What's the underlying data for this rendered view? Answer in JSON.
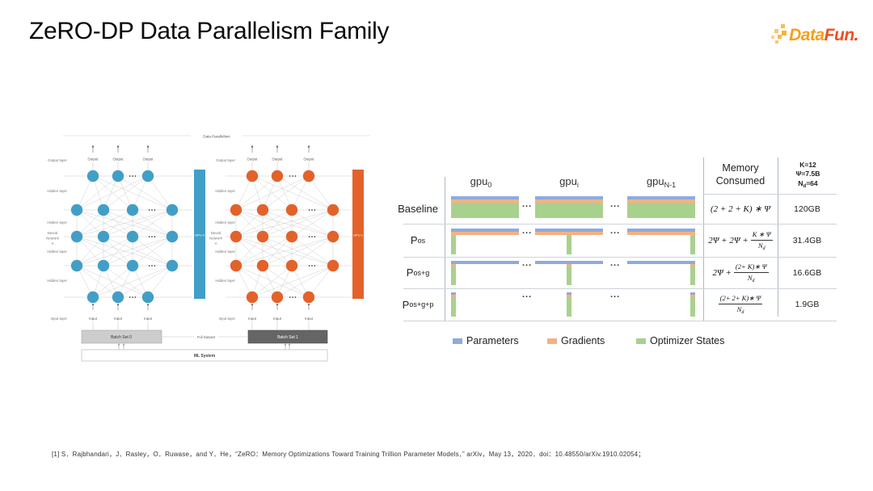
{
  "slide": {
    "title": "ZeRO-DP Data Parallelism Family"
  },
  "logo": {
    "part1": "Data",
    "part2": "Fun",
    "part3": "."
  },
  "diagram": {
    "title": "Data Parallelism",
    "output_layer_label": "Output layer",
    "hidden_layer_label": "Hidden layer",
    "input_layer_label": "Input layer",
    "output_node_label": "Output",
    "input_node_label": "Input",
    "network_label_lines": [
      "Neural",
      "Network",
      "A"
    ],
    "gpu0_label": "GPU 0",
    "gpu1_label": "GPU 1",
    "batch0_label": "Batch Set 0",
    "batch1_label": "Batch Set 1",
    "full_dataset_label": "Full Dataset",
    "ml_system_label": "ML System",
    "colors": {
      "network_a": "#419FC7",
      "network_b": "#E3622A"
    }
  },
  "figure": {
    "gpu_headers": [
      {
        "base": "gpu",
        "sub": "0"
      },
      {
        "base": "gpu",
        "sub": "i"
      },
      {
        "base": "gpu",
        "sub": "N-1"
      }
    ],
    "memory_header": "Memory Consumed",
    "constants": {
      "k": "K=12",
      "psi": "Ψ=7.5B",
      "nd_base": "N",
      "nd_sub": "d",
      "nd_eq": "=64"
    },
    "ellipsis": "...",
    "rows": [
      {
        "label": "Baseline",
        "label_sub": "",
        "formula_pre": "(2 + 2 + K) ∗ Ψ",
        "frac_num": "",
        "frac_den_base": "",
        "frac_den_sub": "",
        "memory": "120GB"
      },
      {
        "label": "P",
        "label_sub": "os",
        "formula_pre": "2Ψ + 2Ψ +",
        "frac_num": "K ∗ Ψ",
        "frac_den_base": "N",
        "frac_den_sub": "d",
        "memory": "31.4GB"
      },
      {
        "label": "P",
        "label_sub": "os+g",
        "formula_pre": "2Ψ +",
        "frac_num": "(2+ K)∗ Ψ",
        "frac_den_base": "N",
        "frac_den_sub": "d",
        "memory": "16.6GB"
      },
      {
        "label": "P",
        "label_sub": "os+g+p",
        "formula_pre": "",
        "frac_num": "(2+ 2+ K)∗ Ψ",
        "frac_den_base": "N",
        "frac_den_sub": "d",
        "memory": "1.9GB"
      }
    ],
    "legend": [
      {
        "label": "Parameters",
        "color": "#8FAADC"
      },
      {
        "label": "Gradients",
        "color": "#F4B183"
      },
      {
        "label": "Optimizer States",
        "color": "#A9D18E"
      }
    ]
  },
  "footer": {
    "citation": "[1] S．Rajbhandari，J．Rasley，O．Ruwase，and Y．He，“ZeRO：Memory Optimizations Toward Training Trillion Parameter Models．” arXiv，May 13，2020．doi：10.48550/arXiv.1910.02054；"
  }
}
